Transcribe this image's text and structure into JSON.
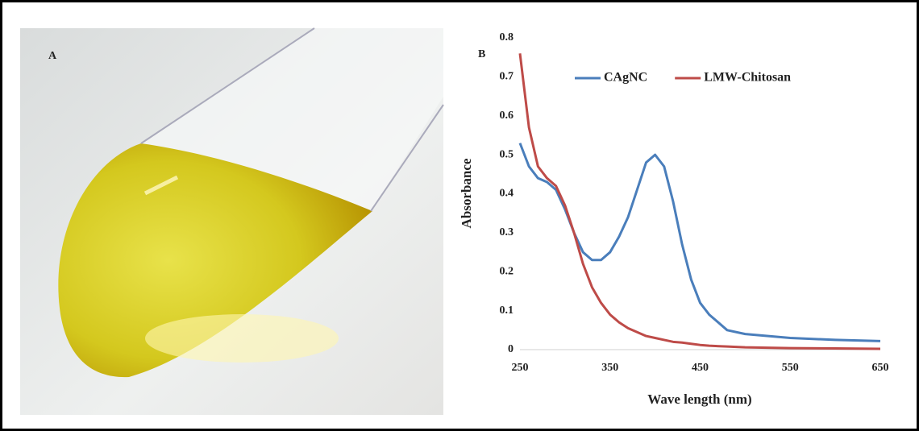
{
  "figure": {
    "photo_label": "A"
  },
  "chart_data": {
    "type": "line",
    "panel_label": "B",
    "x_label": "Wave length (nm)",
    "y_label": "Absorbance",
    "x": [
      250,
      260,
      270,
      280,
      290,
      300,
      310,
      320,
      330,
      340,
      350,
      360,
      370,
      380,
      390,
      400,
      410,
      420,
      430,
      440,
      450,
      460,
      480,
      500,
      550,
      600,
      650
    ],
    "series": [
      {
        "name": "CAgNC",
        "color": "#4a7ebb",
        "values": [
          0.53,
          0.47,
          0.44,
          0.43,
          0.41,
          0.36,
          0.3,
          0.25,
          0.23,
          0.23,
          0.25,
          0.29,
          0.34,
          0.41,
          0.48,
          0.5,
          0.47,
          0.38,
          0.27,
          0.18,
          0.12,
          0.09,
          0.05,
          0.04,
          0.03,
          0.025,
          0.022
        ]
      },
      {
        "name": "LMW-Chitosan",
        "color": "#be4b48",
        "values": [
          0.76,
          0.57,
          0.47,
          0.44,
          0.42,
          0.37,
          0.3,
          0.22,
          0.16,
          0.12,
          0.09,
          0.07,
          0.055,
          0.045,
          0.035,
          0.03,
          0.025,
          0.02,
          0.018,
          0.015,
          0.012,
          0.01,
          0.008,
          0.006,
          0.004,
          0.003,
          0.002
        ]
      }
    ],
    "xlim": [
      250,
      650
    ],
    "xticks": [
      250,
      350,
      450,
      550,
      650
    ],
    "ylim": [
      0,
      0.8
    ],
    "yticks": [
      0,
      0.1,
      0.2,
      0.3,
      0.4,
      0.5,
      0.6,
      0.7,
      0.8
    ],
    "legend": "top",
    "grid": false
  }
}
